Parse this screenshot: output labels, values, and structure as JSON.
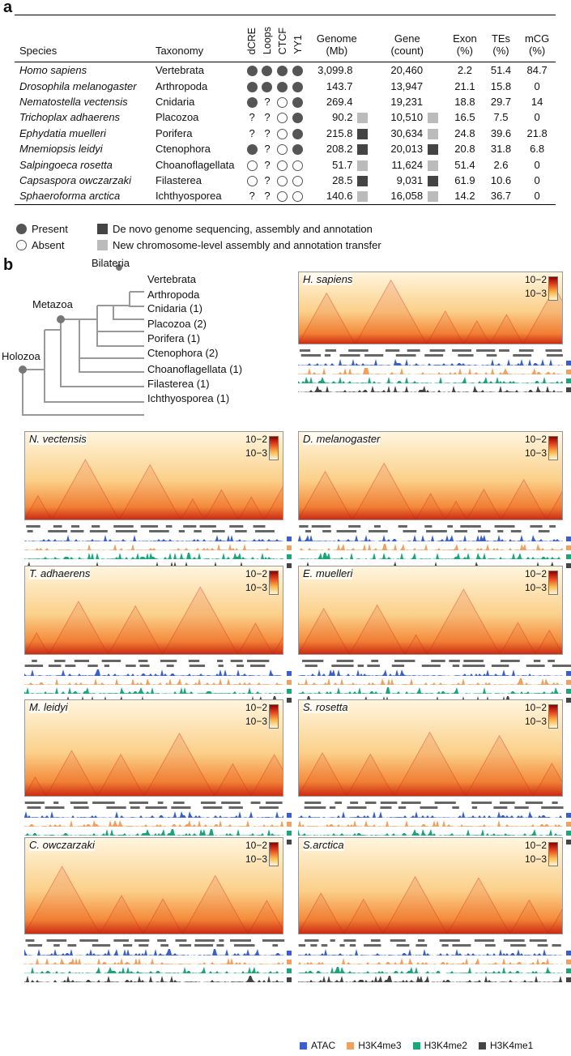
{
  "panel_a": {
    "letter": "a",
    "headers": {
      "species": "Species",
      "taxonomy": "Taxonomy",
      "dcre": "dCRE",
      "loops": "Loops",
      "ctcf": "CTCF",
      "yy1": "YY1",
      "genome": "Genome\n(Mb)",
      "gene": "Gene\n(count)",
      "exon": "Exon\n(%)",
      "tes": "TEs\n(%)",
      "mcg": "mCG\n(%)"
    },
    "rows": [
      {
        "species": "Homo sapiens",
        "taxonomy": "Vertebrata",
        "features": [
          "present",
          "present",
          "present",
          "present"
        ],
        "genome": "3,099.8",
        "genome_mark": "",
        "gene": "20,460",
        "gene_mark": "",
        "exon": "2.2",
        "tes": "51.4",
        "mcg": "84.7"
      },
      {
        "species": "Drosophila melanogaster",
        "taxonomy": "Arthropoda",
        "features": [
          "present",
          "present",
          "present",
          "present"
        ],
        "genome": "143.7",
        "genome_mark": "",
        "gene": "13,947",
        "gene_mark": "",
        "exon": "21.1",
        "tes": "15.8",
        "mcg": "0"
      },
      {
        "species": "Nematostella vectensis",
        "taxonomy": "Cnidaria",
        "features": [
          "present",
          "?",
          "absent",
          "present"
        ],
        "genome": "269.4",
        "genome_mark": "",
        "gene": "19,231",
        "gene_mark": "",
        "exon": "18.8",
        "tes": "29.7",
        "mcg": "14"
      },
      {
        "species": "Trichoplax adhaerens",
        "taxonomy": "Placozoa",
        "features": [
          "?",
          "?",
          "absent",
          "present"
        ],
        "genome": "90.2",
        "genome_mark": "chrom",
        "gene": "10,510",
        "gene_mark": "chrom",
        "exon": "16.5",
        "tes": "7.5",
        "mcg": "0"
      },
      {
        "species": "Ephydatia muelleri",
        "taxonomy": "Porifera",
        "features": [
          "?",
          "?",
          "absent",
          "present"
        ],
        "genome": "215.8",
        "genome_mark": "denovo",
        "gene": "30,634",
        "gene_mark": "chrom",
        "exon": "24.8",
        "tes": "39.6",
        "mcg": "21.8"
      },
      {
        "species": "Mnemiopsis leidyi",
        "taxonomy": "Ctenophora",
        "features": [
          "present",
          "?",
          "absent",
          "present"
        ],
        "genome": "208.2",
        "genome_mark": "denovo",
        "gene": "20,013",
        "gene_mark": "denovo",
        "exon": "20.8",
        "tes": "31.8",
        "mcg": "6.8"
      },
      {
        "species": "Salpingoeca rosetta",
        "taxonomy": "Choanoflagellata",
        "features": [
          "absent",
          "?",
          "absent",
          "absent"
        ],
        "genome": "51.7",
        "genome_mark": "chrom",
        "gene": "11,624",
        "gene_mark": "chrom",
        "exon": "51.4",
        "tes": "2.6",
        "mcg": "0"
      },
      {
        "species": "Capsaspora owczarzaki",
        "taxonomy": "Filasterea",
        "features": [
          "absent",
          "?",
          "absent",
          "absent"
        ],
        "genome": "28.5",
        "genome_mark": "denovo",
        "gene": "9,031",
        "gene_mark": "denovo",
        "exon": "61.9",
        "tes": "10.6",
        "mcg": "0"
      },
      {
        "species": "Sphaeroforma arctica",
        "taxonomy": "Ichthyosporea",
        "features": [
          "?",
          "?",
          "absent",
          "absent"
        ],
        "genome": "140.6",
        "genome_mark": "chrom",
        "gene": "16,058",
        "gene_mark": "chrom",
        "exon": "14.2",
        "tes": "36.7",
        "mcg": "0"
      }
    ],
    "legend": {
      "present": "Present",
      "absent": "Absent",
      "denovo": "De novo genome sequencing, assembly and annotation",
      "chrom": "New chromosome-level assembly and annotation transfer"
    }
  },
  "panel_b": {
    "letter": "b",
    "tree": {
      "nodes": {
        "bilateria": "Bilateria",
        "metazoa": "Metazoa",
        "holozoa": "Holozoa"
      },
      "leaves": [
        "Vertebrata",
        "Arthropoda",
        "Cnidaria (1)",
        "Placozoa (2)",
        "Porifera (1)",
        "Ctenophora (2)",
        "Choanoflagellata (1)",
        "Filasterea (1)",
        "Ichthyosporea (1)"
      ]
    },
    "colorbar": {
      "top": "10−2",
      "bottom": "10−3"
    },
    "maps": [
      {
        "title": "H. sapiens"
      },
      {
        "title": "N. vectensis"
      },
      {
        "title": "D. melanogaster"
      },
      {
        "title": "T. adhaerens"
      },
      {
        "title": "E. muelleri"
      },
      {
        "title": "M. leidyi"
      },
      {
        "title": "S. rosetta"
      },
      {
        "title": "C. owczarzaki"
      },
      {
        "title": "S.arctica"
      }
    ],
    "track_legend": [
      {
        "label": "ATAC",
        "color": "#3a5fcd"
      },
      {
        "label": "H3K4me3",
        "color": "#f0a060"
      },
      {
        "label": "H3K4me2",
        "color": "#1aa57a"
      },
      {
        "label": "H3K4me1",
        "color": "#444444"
      }
    ]
  }
}
